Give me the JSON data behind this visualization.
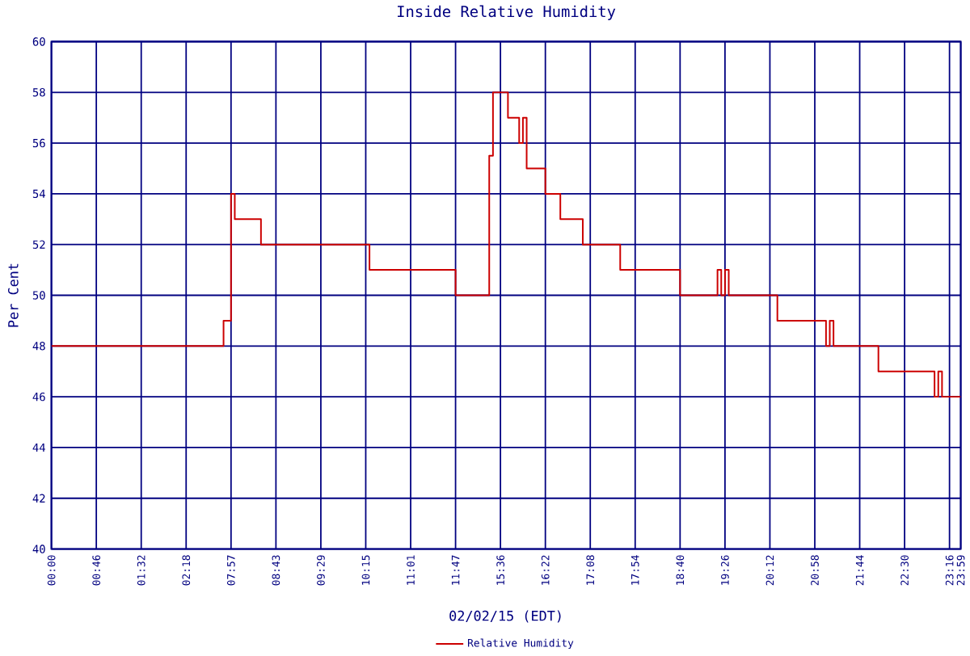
{
  "chart_data": {
    "type": "step",
    "title": "Inside Relative Humidity",
    "xlabel": "02/02/15 (EDT)",
    "ylabel": "Per Cent",
    "ylim": [
      40,
      60
    ],
    "yticks": [
      40,
      42,
      44,
      46,
      48,
      50,
      52,
      54,
      56,
      58,
      60
    ],
    "grid": true,
    "legend": "bottom",
    "marker": "none",
    "line_style": "solid",
    "categories": [
      "00:00",
      null,
      null,
      null,
      null,
      null,
      null,
      null,
      null,
      null,
      null,
      null,
      "00:46",
      null,
      null,
      null,
      null,
      null,
      null,
      null,
      null,
      null,
      null,
      null,
      "01:32",
      null,
      null,
      null,
      null,
      null,
      null,
      null,
      null,
      null,
      null,
      null,
      "02:18",
      null,
      null,
      null,
      null,
      null,
      null,
      null,
      null,
      null,
      null,
      null,
      "07:57",
      null,
      null,
      null,
      null,
      null,
      null,
      null,
      null,
      null,
      null,
      null,
      "08:43",
      null,
      null,
      null,
      null,
      null,
      null,
      null,
      null,
      null,
      null,
      null,
      "09:29",
      null,
      null,
      null,
      null,
      null,
      null,
      null,
      null,
      null,
      null,
      null,
      "10:15",
      null,
      null,
      null,
      null,
      null,
      null,
      null,
      null,
      null,
      null,
      null,
      "11:01",
      null,
      null,
      null,
      null,
      null,
      null,
      null,
      null,
      null,
      null,
      null,
      "11:47",
      null,
      null,
      null,
      null,
      null,
      null,
      null,
      null,
      null,
      null,
      null,
      "15:36",
      null,
      null,
      null,
      null,
      null,
      null,
      null,
      null,
      null,
      null,
      null,
      "16:22",
      null,
      null,
      null,
      null,
      null,
      null,
      null,
      null,
      null,
      null,
      null,
      "17:08",
      null,
      null,
      null,
      null,
      null,
      null,
      null,
      null,
      null,
      null,
      null,
      "17:54",
      null,
      null,
      null,
      null,
      null,
      null,
      null,
      null,
      null,
      null,
      null,
      "18:40",
      null,
      null,
      null,
      null,
      null,
      null,
      null,
      null,
      null,
      null,
      null,
      "19:26",
      null,
      null,
      null,
      null,
      null,
      null,
      null,
      null,
      null,
      null,
      null,
      "20:12",
      null,
      null,
      null,
      null,
      null,
      null,
      null,
      null,
      null,
      null,
      null,
      "20:58",
      null,
      null,
      null,
      null,
      null,
      null,
      null,
      null,
      null,
      null,
      null,
      "21:44",
      null,
      null,
      null,
      null,
      null,
      null,
      null,
      null,
      null,
      null,
      null,
      "22:30",
      null,
      null,
      null,
      null,
      null,
      null,
      null,
      null,
      null,
      null,
      null,
      "23:16",
      null,
      null,
      "23:59"
    ],
    "series": [
      {
        "name": "Relative Humidity",
        "color": "#cc0000",
        "values": [
          48,
          48,
          48,
          48,
          48,
          48,
          48,
          48,
          48,
          48,
          48,
          48,
          48,
          48,
          48,
          48,
          48,
          48,
          48,
          48,
          48,
          48,
          48,
          48,
          48,
          48,
          48,
          48,
          48,
          48,
          48,
          48,
          48,
          48,
          48,
          48,
          48,
          48,
          48,
          48,
          48,
          48,
          48,
          48,
          48,
          48,
          49,
          49,
          54,
          53,
          53,
          53,
          53,
          53,
          53,
          53,
          52,
          52,
          52,
          52,
          52,
          52,
          52,
          52,
          52,
          52,
          52,
          52,
          52,
          52,
          52,
          52,
          52,
          52,
          52,
          52,
          52,
          52,
          52,
          52,
          52,
          52,
          52,
          52,
          52,
          51,
          51,
          51,
          51,
          51,
          51,
          51,
          51,
          51,
          51,
          51,
          51,
          51,
          51,
          51,
          51,
          51,
          51,
          51,
          51,
          51,
          51,
          51,
          50,
          50,
          50,
          50,
          50,
          50,
          50,
          50,
          50,
          55.5,
          58,
          58,
          58,
          58,
          57,
          57,
          57,
          56,
          57,
          55,
          55,
          55,
          55,
          55,
          54,
          54,
          54,
          54,
          53,
          53,
          53,
          53,
          53,
          53,
          52,
          52,
          52,
          52,
          52,
          52,
          52,
          52,
          52,
          52,
          51,
          51,
          51,
          51,
          51,
          51,
          51,
          51,
          51,
          51,
          51,
          51,
          51,
          51,
          51,
          51,
          50,
          50,
          50,
          50,
          50,
          50,
          50,
          50,
          50,
          50,
          51,
          50,
          51,
          50,
          50,
          50,
          50,
          50,
          50,
          50,
          50,
          50,
          50,
          50,
          50,
          50,
          49,
          49,
          49,
          49,
          49,
          49,
          49,
          49,
          49,
          49,
          49,
          49,
          49,
          48,
          49,
          48,
          48,
          48,
          48,
          48,
          48,
          48,
          48,
          48,
          48,
          48,
          48,
          47,
          47,
          47,
          47,
          47,
          47,
          47,
          47,
          47,
          47,
          47,
          47,
          47,
          47,
          47,
          46,
          47,
          46,
          46,
          46,
          46,
          46,
          46
        ]
      }
    ]
  }
}
